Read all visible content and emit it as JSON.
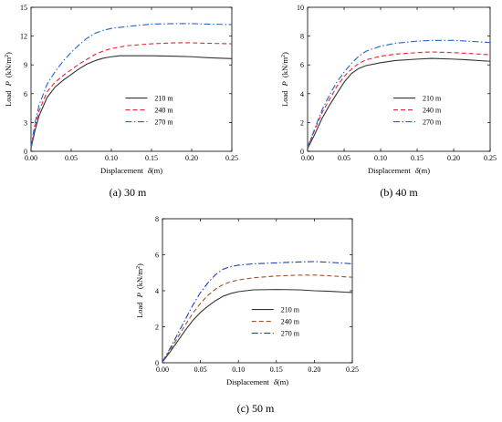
{
  "chart_data": [
    {
      "type": "line",
      "caption": "(a) 30 m",
      "xlabel": "Displacement",
      "xsymbol": "δ",
      "xunit": "(m)",
      "ylabel": "Load",
      "ysymbol": "P",
      "yunit": "(kN/m",
      "yunit_sup": "2",
      "yunit_close": ")",
      "xlim": [
        0,
        0.25
      ],
      "ylim": [
        0,
        15
      ],
      "xticks": [
        "0.00",
        "0.05",
        "0.10",
        "0.15",
        "0.20",
        "0.25"
      ],
      "yticks": [
        "0",
        "3",
        "6",
        "9",
        "12",
        "15"
      ],
      "legend_position": "lower-right",
      "series": [
        {
          "name": "210 m",
          "color": "#333333",
          "style": "solid",
          "points": [
            [
              0,
              0.3
            ],
            [
              0.005,
              2.2
            ],
            [
              0.01,
              3.7
            ],
            [
              0.02,
              5.6
            ],
            [
              0.03,
              6.7
            ],
            [
              0.04,
              7.4
            ],
            [
              0.05,
              8.0
            ],
            [
              0.06,
              8.6
            ],
            [
              0.07,
              9.1
            ],
            [
              0.08,
              9.45
            ],
            [
              0.09,
              9.7
            ],
            [
              0.1,
              9.85
            ],
            [
              0.11,
              9.95
            ],
            [
              0.12,
              9.95
            ],
            [
              0.15,
              9.95
            ],
            [
              0.18,
              9.9
            ],
            [
              0.2,
              9.85
            ],
            [
              0.22,
              9.75
            ],
            [
              0.25,
              9.65
            ]
          ]
        },
        {
          "name": "240 m",
          "color": "#e8262b",
          "style": "dash",
          "points": [
            [
              0,
              0.35
            ],
            [
              0.005,
              2.6
            ],
            [
              0.01,
              4.2
            ],
            [
              0.02,
              6.2
            ],
            [
              0.03,
              7.2
            ],
            [
              0.04,
              7.9
            ],
            [
              0.05,
              8.5
            ],
            [
              0.06,
              9.1
            ],
            [
              0.07,
              9.6
            ],
            [
              0.08,
              10.1
            ],
            [
              0.09,
              10.45
            ],
            [
              0.1,
              10.7
            ],
            [
              0.12,
              11.0
            ],
            [
              0.15,
              11.2
            ],
            [
              0.18,
              11.3
            ],
            [
              0.2,
              11.3
            ],
            [
              0.22,
              11.25
            ],
            [
              0.25,
              11.2
            ]
          ]
        },
        {
          "name": "270 m",
          "color": "#2566c8",
          "style": "dashdot",
          "points": [
            [
              0,
              0.4
            ],
            [
              0.005,
              3.0
            ],
            [
              0.01,
              4.8
            ],
            [
              0.02,
              7.0
            ],
            [
              0.03,
              8.3
            ],
            [
              0.04,
              9.4
            ],
            [
              0.05,
              10.3
            ],
            [
              0.06,
              11.1
            ],
            [
              0.07,
              11.8
            ],
            [
              0.08,
              12.3
            ],
            [
              0.09,
              12.6
            ],
            [
              0.1,
              12.8
            ],
            [
              0.12,
              13.0
            ],
            [
              0.15,
              13.25
            ],
            [
              0.18,
              13.3
            ],
            [
              0.2,
              13.3
            ],
            [
              0.22,
              13.25
            ],
            [
              0.25,
              13.2
            ]
          ]
        }
      ]
    },
    {
      "type": "line",
      "caption": "(b) 40 m",
      "xlabel": "Displacement",
      "xsymbol": "δ",
      "xunit": "(m)",
      "ylabel": "Load",
      "ysymbol": "P",
      "yunit": "(kN/m",
      "yunit_sup": "2",
      "yunit_close": ")",
      "xlim": [
        0,
        0.25
      ],
      "ylim": [
        0,
        10
      ],
      "xticks": [
        "0.00",
        "0.05",
        "0.10",
        "0.15",
        "0.20",
        "0.25"
      ],
      "yticks": [
        "0",
        "2",
        "4",
        "6",
        "8",
        "10"
      ],
      "legend_position": "lower-right",
      "series": [
        {
          "name": "210 m",
          "color": "#333333",
          "style": "solid",
          "points": [
            [
              0,
              0.2
            ],
            [
              0.01,
              1.2
            ],
            [
              0.02,
              2.3
            ],
            [
              0.03,
              3.2
            ],
            [
              0.04,
              4.0
            ],
            [
              0.05,
              4.8
            ],
            [
              0.06,
              5.4
            ],
            [
              0.07,
              5.75
            ],
            [
              0.08,
              5.95
            ],
            [
              0.1,
              6.15
            ],
            [
              0.12,
              6.3
            ],
            [
              0.15,
              6.4
            ],
            [
              0.17,
              6.45
            ],
            [
              0.2,
              6.4
            ],
            [
              0.22,
              6.35
            ],
            [
              0.25,
              6.25
            ]
          ]
        },
        {
          "name": "240 m",
          "color": "#e8262b",
          "style": "dash",
          "points": [
            [
              0,
              0.25
            ],
            [
              0.01,
              1.5
            ],
            [
              0.02,
              2.7
            ],
            [
              0.03,
              3.6
            ],
            [
              0.04,
              4.5
            ],
            [
              0.05,
              5.2
            ],
            [
              0.06,
              5.7
            ],
            [
              0.07,
              6.1
            ],
            [
              0.08,
              6.35
            ],
            [
              0.1,
              6.6
            ],
            [
              0.12,
              6.75
            ],
            [
              0.15,
              6.85
            ],
            [
              0.17,
              6.9
            ],
            [
              0.2,
              6.85
            ],
            [
              0.22,
              6.8
            ],
            [
              0.25,
              6.7
            ]
          ]
        },
        {
          "name": "270 m",
          "color": "#2566c8",
          "style": "dashdot",
          "points": [
            [
              0,
              0.3
            ],
            [
              0.01,
              1.6
            ],
            [
              0.02,
              2.9
            ],
            [
              0.03,
              3.9
            ],
            [
              0.04,
              4.8
            ],
            [
              0.05,
              5.5
            ],
            [
              0.06,
              6.1
            ],
            [
              0.07,
              6.6
            ],
            [
              0.08,
              6.95
            ],
            [
              0.1,
              7.3
            ],
            [
              0.12,
              7.5
            ],
            [
              0.15,
              7.65
            ],
            [
              0.17,
              7.7
            ],
            [
              0.2,
              7.7
            ],
            [
              0.22,
              7.65
            ],
            [
              0.25,
              7.55
            ]
          ]
        }
      ]
    },
    {
      "type": "line",
      "caption": "(c)  50 m",
      "xlabel": "Displacement",
      "xsymbol": "δ",
      "xunit": "(m)",
      "ylabel": "Load",
      "ysymbol": "P",
      "yunit": "(kN/m",
      "yunit_sup": "2",
      "yunit_close": ")",
      "xlim": [
        0,
        0.25
      ],
      "ylim": [
        0,
        8
      ],
      "xticks": [
        "0.00",
        "0.05",
        "0.10",
        "0.15",
        "0.20",
        "0.25"
      ],
      "yticks": [
        "0",
        "2",
        "4",
        "6",
        "8"
      ],
      "legend_position": "lower-right",
      "series": [
        {
          "name": "210 m",
          "color": "#333333",
          "style": "solid",
          "points": [
            [
              0,
              0.05
            ],
            [
              0.01,
              0.6
            ],
            [
              0.02,
              1.2
            ],
            [
              0.03,
              1.8
            ],
            [
              0.04,
              2.35
            ],
            [
              0.05,
              2.8
            ],
            [
              0.06,
              3.15
            ],
            [
              0.07,
              3.45
            ],
            [
              0.08,
              3.7
            ],
            [
              0.09,
              3.85
            ],
            [
              0.1,
              3.95
            ],
            [
              0.12,
              4.05
            ],
            [
              0.15,
              4.07
            ],
            [
              0.18,
              4.05
            ],
            [
              0.2,
              4.0
            ],
            [
              0.22,
              3.97
            ],
            [
              0.25,
              3.9
            ]
          ]
        },
        {
          "name": "240 m",
          "color": "#a0502a",
          "style": "dash",
          "points": [
            [
              0,
              0.05
            ],
            [
              0.01,
              0.7
            ],
            [
              0.02,
              1.4
            ],
            [
              0.03,
              2.1
            ],
            [
              0.04,
              2.75
            ],
            [
              0.05,
              3.3
            ],
            [
              0.06,
              3.75
            ],
            [
              0.07,
              4.1
            ],
            [
              0.08,
              4.35
            ],
            [
              0.09,
              4.5
            ],
            [
              0.1,
              4.6
            ],
            [
              0.12,
              4.72
            ],
            [
              0.15,
              4.82
            ],
            [
              0.18,
              4.87
            ],
            [
              0.2,
              4.87
            ],
            [
              0.22,
              4.83
            ],
            [
              0.25,
              4.75
            ]
          ]
        },
        {
          "name": "270 m",
          "color": "#2040c0",
          "style": "dashdot",
          "points": [
            [
              0,
              0.05
            ],
            [
              0.01,
              0.8
            ],
            [
              0.02,
              1.6
            ],
            [
              0.03,
              2.4
            ],
            [
              0.04,
              3.2
            ],
            [
              0.05,
              3.9
            ],
            [
              0.06,
              4.45
            ],
            [
              0.07,
              4.9
            ],
            [
              0.08,
              5.2
            ],
            [
              0.09,
              5.35
            ],
            [
              0.1,
              5.42
            ],
            [
              0.12,
              5.5
            ],
            [
              0.15,
              5.55
            ],
            [
              0.18,
              5.6
            ],
            [
              0.2,
              5.62
            ],
            [
              0.22,
              5.58
            ],
            [
              0.25,
              5.5
            ]
          ]
        }
      ]
    }
  ]
}
